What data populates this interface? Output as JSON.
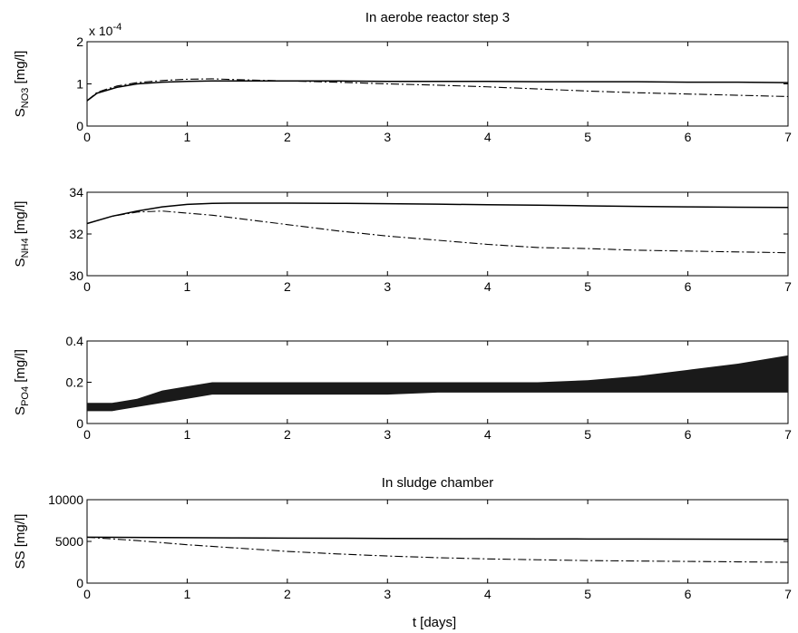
{
  "figure": {
    "xlabel": "t [days]"
  },
  "chart_data": [
    {
      "type": "line",
      "title": "In aerobe reactor step 3",
      "ylabel_main": "S",
      "ylabel_sub": "NO3",
      "ylabel_unit": " [mg/l]",
      "y_exponent_label": "x 10",
      "y_exponent_power": "-4",
      "xlim": [
        0,
        7
      ],
      "ylim": [
        0,
        2
      ],
      "x_ticks": [
        "0",
        "1",
        "2",
        "3",
        "4",
        "5",
        "6",
        "7"
      ],
      "y_ticks": [
        "0",
        "1",
        "2"
      ],
      "x": [
        0,
        0.1,
        0.2,
        0.3,
        0.5,
        0.75,
        1,
        1.25,
        1.5,
        2,
        2.5,
        3,
        3.5,
        4,
        4.5,
        5,
        5.5,
        6,
        6.5,
        7
      ],
      "series": [
        {
          "style": "solid",
          "values": [
            0.6,
            0.78,
            0.85,
            0.92,
            1.0,
            1.04,
            1.06,
            1.07,
            1.07,
            1.07,
            1.07,
            1.06,
            1.06,
            1.06,
            1.05,
            1.05,
            1.05,
            1.04,
            1.04,
            1.03
          ]
        },
        {
          "style": "dash-dot",
          "values": [
            0.6,
            0.8,
            0.88,
            0.95,
            1.03,
            1.08,
            1.11,
            1.12,
            1.1,
            1.07,
            1.04,
            1.0,
            0.97,
            0.93,
            0.88,
            0.83,
            0.79,
            0.76,
            0.73,
            0.7
          ]
        }
      ]
    },
    {
      "type": "line",
      "ylabel_main": "S",
      "ylabel_sub": "NH4",
      "ylabel_unit": " [mg/l]",
      "xlim": [
        0,
        7
      ],
      "ylim": [
        30,
        34
      ],
      "x_ticks": [
        "0",
        "1",
        "2",
        "3",
        "4",
        "5",
        "6",
        "7"
      ],
      "y_ticks": [
        "30",
        "32",
        "34"
      ],
      "x": [
        0,
        0.25,
        0.5,
        0.75,
        1,
        1.25,
        1.5,
        2,
        2.5,
        3,
        3.5,
        4,
        4.5,
        5,
        5.5,
        6,
        6.5,
        7
      ],
      "series": [
        {
          "style": "solid",
          "values": [
            32.5,
            32.85,
            33.1,
            33.3,
            33.42,
            33.47,
            33.48,
            33.48,
            33.47,
            33.45,
            33.43,
            33.4,
            33.38,
            33.35,
            33.32,
            33.3,
            33.28,
            33.27
          ]
        },
        {
          "style": "dash-dot",
          "values": [
            32.5,
            32.85,
            33.05,
            33.1,
            33.0,
            32.9,
            32.75,
            32.45,
            32.15,
            31.9,
            31.7,
            31.5,
            31.35,
            31.3,
            31.22,
            31.18,
            31.14,
            31.1
          ]
        }
      ]
    },
    {
      "type": "line",
      "ylabel_main": "S",
      "ylabel_sub": "PO4",
      "ylabel_unit": " [mg/l]",
      "xlim": [
        0,
        7
      ],
      "ylim": [
        0,
        0.4
      ],
      "x_ticks": [
        "0",
        "1",
        "2",
        "3",
        "4",
        "5",
        "6",
        "7"
      ],
      "y_ticks": [
        "0",
        "0.2",
        "0.4"
      ],
      "x": [
        0,
        0.25,
        0.5,
        0.75,
        1,
        1.25,
        1.5,
        2,
        2.5,
        3,
        3.5,
        4,
        4.5,
        5,
        5.5,
        6,
        6.5,
        7
      ],
      "band_upper": [
        0.1,
        0.1,
        0.12,
        0.16,
        0.18,
        0.2,
        0.2,
        0.2,
        0.2,
        0.2,
        0.2,
        0.2,
        0.2,
        0.21,
        0.23,
        0.26,
        0.29,
        0.33
      ],
      "band_lower": [
        0.06,
        0.06,
        0.08,
        0.1,
        0.12,
        0.14,
        0.14,
        0.14,
        0.14,
        0.14,
        0.15,
        0.15,
        0.15,
        0.15,
        0.15,
        0.15,
        0.15,
        0.15
      ]
    },
    {
      "type": "line",
      "title": "In sludge chamber",
      "ylabel_main": "SS",
      "ylabel_sub": "",
      "ylabel_unit": " [mg/l]",
      "xlim": [
        0,
        7
      ],
      "ylim": [
        0,
        10000
      ],
      "x_ticks": [
        "0",
        "1",
        "2",
        "3",
        "4",
        "5",
        "6",
        "7"
      ],
      "y_ticks": [
        "0",
        "5000",
        "10000"
      ],
      "x": [
        0,
        0.5,
        1,
        1.5,
        2,
        2.5,
        3,
        3.5,
        4,
        4.5,
        5,
        5.5,
        6,
        6.5,
        7
      ],
      "series": [
        {
          "style": "solid",
          "values": [
            5500,
            5480,
            5450,
            5420,
            5400,
            5380,
            5360,
            5340,
            5320,
            5300,
            5290,
            5280,
            5270,
            5260,
            5250
          ]
        },
        {
          "style": "dash-dot",
          "values": [
            5500,
            5100,
            4600,
            4200,
            3800,
            3500,
            3250,
            3050,
            2900,
            2800,
            2700,
            2650,
            2600,
            2550,
            2500
          ]
        }
      ]
    }
  ]
}
